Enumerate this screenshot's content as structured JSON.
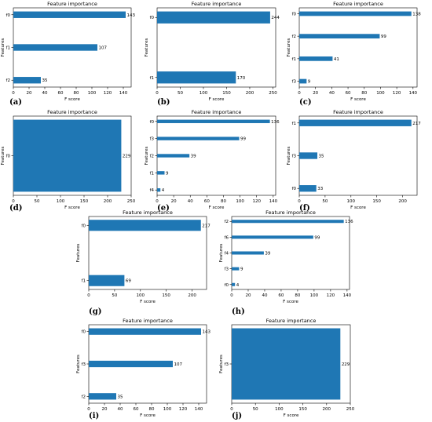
{
  "chart_data": [
    {
      "panel": "(a)",
      "type": "bar",
      "orientation": "horizontal",
      "title": "Feature importance",
      "xlabel": "F score",
      "ylabel": "Features",
      "categories": [
        "f2",
        "f1",
        "f0"
      ],
      "values": [
        35,
        107,
        143
      ],
      "xlim": [
        0,
        150
      ],
      "xticks": [
        0,
        20,
        40,
        60,
        80,
        100,
        120,
        140
      ],
      "color": "#1f77b4",
      "grid": false
    },
    {
      "panel": "(b)",
      "type": "bar",
      "orientation": "horizontal",
      "title": "Feature importance",
      "xlabel": "F score",
      "ylabel": "Features",
      "categories": [
        "f1",
        "f0"
      ],
      "values": [
        170,
        244
      ],
      "xlim": [
        0,
        256
      ],
      "xticks": [
        0,
        50,
        100,
        150,
        200,
        250
      ],
      "color": "#1f77b4",
      "grid": false
    },
    {
      "panel": "(c)",
      "type": "bar",
      "orientation": "horizontal",
      "title": "Feature importance",
      "xlabel": "F score",
      "ylabel": "Features",
      "categories": [
        "f3",
        "f1",
        "f2",
        "f0"
      ],
      "values": [
        9,
        41,
        99,
        138
      ],
      "xlim": [
        0,
        145
      ],
      "xticks": [
        0,
        20,
        40,
        60,
        80,
        100,
        120,
        140
      ],
      "color": "#1f77b4",
      "grid": false
    },
    {
      "panel": "(d)",
      "type": "bar",
      "orientation": "horizontal",
      "title": "Feature importance",
      "xlabel": "F score",
      "ylabel": "Features",
      "categories": [
        "f0"
      ],
      "values": [
        229
      ],
      "xlim": [
        0,
        250
      ],
      "xticks": [
        0,
        50,
        100,
        150,
        200,
        250
      ],
      "color": "#1f77b4",
      "grid": false
    },
    {
      "panel": "(e)",
      "type": "bar",
      "orientation": "horizontal",
      "title": "Feature importance",
      "xlabel": "F score",
      "ylabel": "Features",
      "categories": [
        "f4",
        "f1",
        "f2",
        "f3",
        "f0"
      ],
      "values": [
        4,
        9,
        39,
        99,
        136
      ],
      "xlim": [
        0,
        143
      ],
      "xticks": [
        0,
        20,
        40,
        60,
        80,
        100,
        120,
        140
      ],
      "color": "#1f77b4",
      "grid": false
    },
    {
      "panel": "(f)",
      "type": "bar",
      "orientation": "horizontal",
      "title": "Feature importance",
      "xlabel": "F score",
      "ylabel": "Features",
      "categories": [
        "f0",
        "f3",
        "f1"
      ],
      "values": [
        33,
        35,
        217
      ],
      "xlim": [
        0,
        228
      ],
      "xticks": [
        0,
        50,
        100,
        150,
        200
      ],
      "color": "#1f77b4",
      "grid": false
    },
    {
      "panel": "(g)",
      "type": "bar",
      "orientation": "horizontal",
      "title": "Feature importance",
      "xlabel": "F score",
      "ylabel": "Features",
      "categories": [
        "f1",
        "f0"
      ],
      "values": [
        69,
        217
      ],
      "xlim": [
        0,
        228
      ],
      "xticks": [
        0,
        50,
        100,
        150,
        200
      ],
      "color": "#1f77b4",
      "grid": false
    },
    {
      "panel": "(h)",
      "type": "bar",
      "orientation": "horizontal",
      "title": "Feature importance",
      "xlabel": "F score",
      "ylabel": "Features",
      "categories": [
        "f0",
        "f3",
        "f4",
        "f6",
        "f2"
      ],
      "values": [
        4,
        9,
        39,
        99,
        136
      ],
      "xlim": [
        0,
        143
      ],
      "xticks": [
        0,
        20,
        40,
        60,
        80,
        100,
        120,
        140
      ],
      "color": "#1f77b4",
      "grid": false
    },
    {
      "panel": "(i)",
      "type": "bar",
      "orientation": "horizontal",
      "title": "Feature importance",
      "xlabel": "F score",
      "ylabel": "Features",
      "categories": [
        "f2",
        "f3",
        "f0"
      ],
      "values": [
        35,
        107,
        143
      ],
      "xlim": [
        0,
        150
      ],
      "xticks": [
        0,
        20,
        40,
        60,
        80,
        100,
        120,
        140
      ],
      "color": "#1f77b4",
      "grid": false
    },
    {
      "panel": "(j)",
      "type": "bar",
      "orientation": "horizontal",
      "title": "Feature importance",
      "xlabel": "F score",
      "ylabel": "Features",
      "categories": [
        "f3"
      ],
      "values": [
        229
      ],
      "xlim": [
        0,
        250
      ],
      "xticks": [
        0,
        50,
        100,
        150,
        200,
        250
      ],
      "color": "#1f77b4",
      "grid": false
    }
  ]
}
